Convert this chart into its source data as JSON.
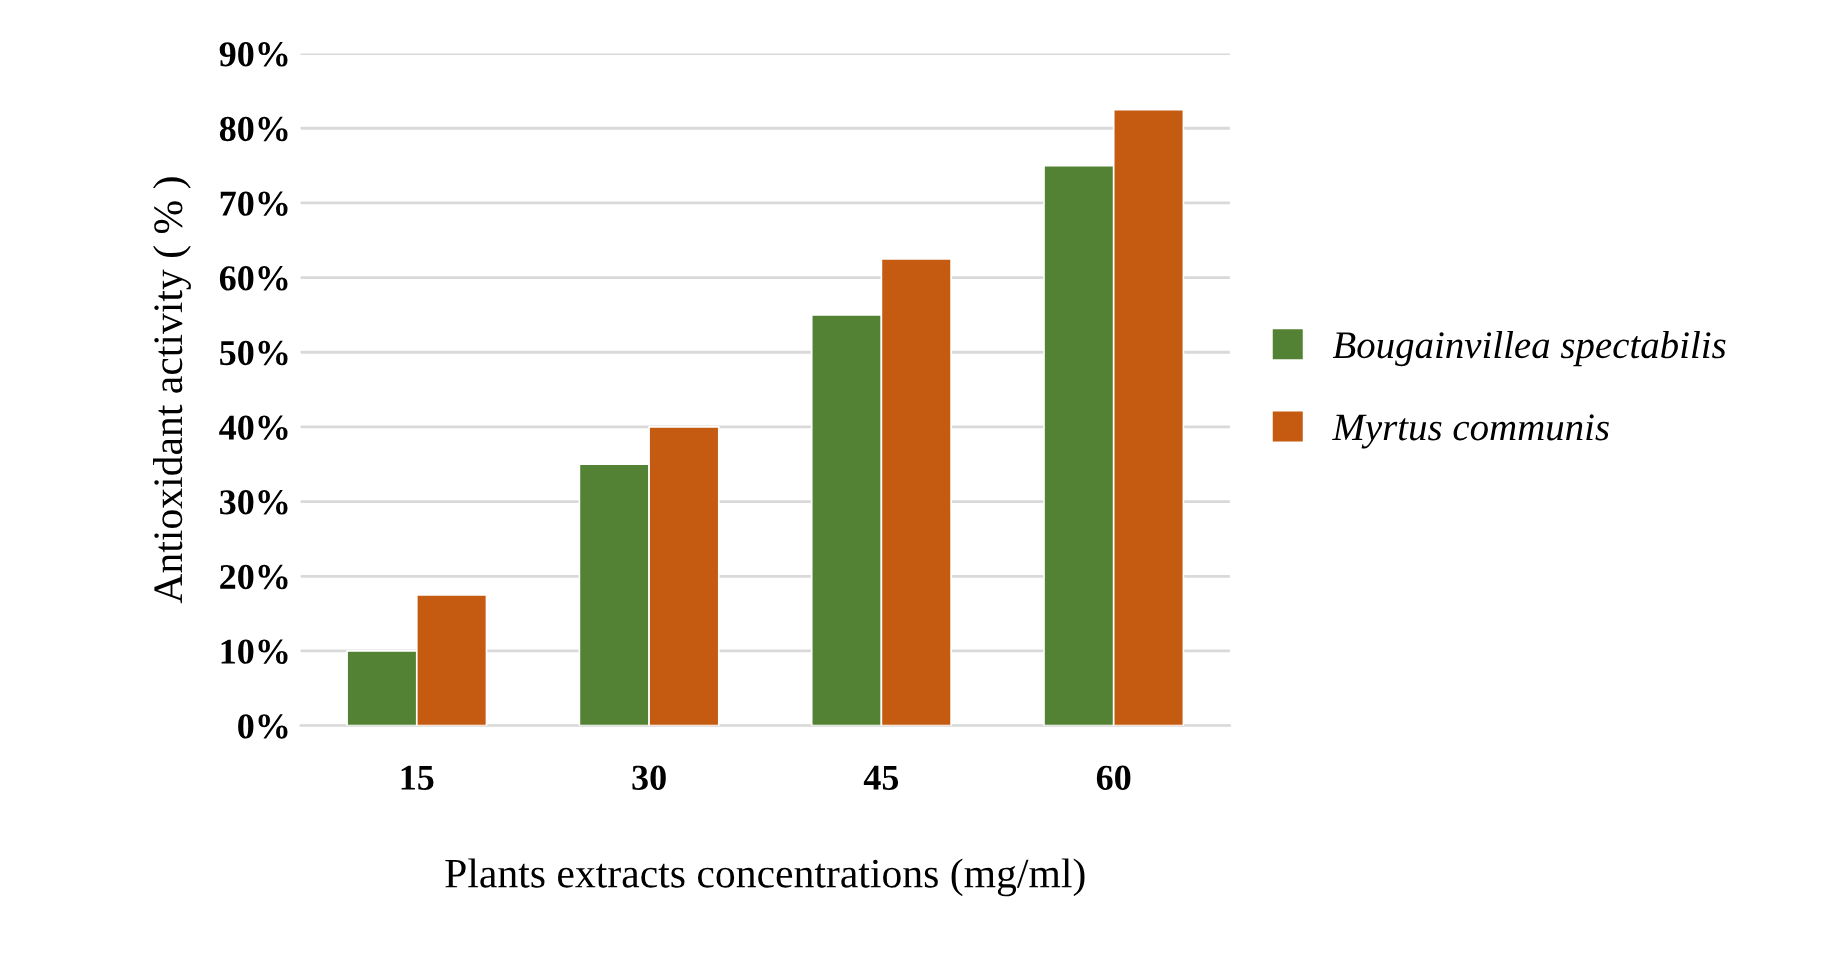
{
  "chart_data": {
    "type": "bar",
    "xlabel": "Plants extracts concentrations (mg/ml)",
    "ylabel": "Antioxidant activity ( % )",
    "categories": [
      "15",
      "30",
      "45",
      "60"
    ],
    "series": [
      {
        "name": "Bougainvillea spectabilis",
        "color": "#548235",
        "values": [
          10,
          35,
          55,
          75
        ]
      },
      {
        "name": "Myrtus communis",
        "color": "#c55a11",
        "values": [
          17.5,
          40,
          62.5,
          82.5
        ]
      }
    ],
    "ylim": [
      0,
      90
    ],
    "yticks": [
      {
        "value": 0,
        "label": "0%"
      },
      {
        "value": 10,
        "label": "10%"
      },
      {
        "value": 20,
        "label": "20%"
      },
      {
        "value": 30,
        "label": "30%"
      },
      {
        "value": 40,
        "label": "40%"
      },
      {
        "value": 50,
        "label": "50%"
      },
      {
        "value": 60,
        "label": "60%"
      },
      {
        "value": 70,
        "label": "70%"
      },
      {
        "value": 80,
        "label": "80%"
      },
      {
        "value": 90,
        "label": "90%"
      }
    ],
    "grid": "y",
    "legend": "right"
  }
}
